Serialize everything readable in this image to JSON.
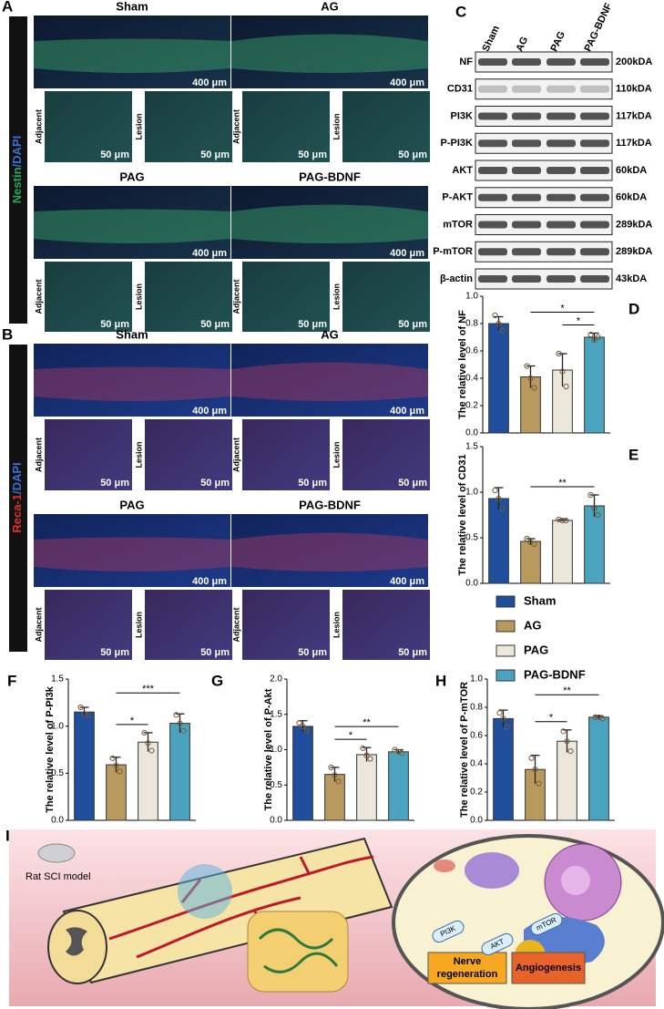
{
  "panel_a": {
    "letter": "A",
    "stain": [
      "Nestin",
      "/DAPI"
    ],
    "images": [
      {
        "title": "Sham",
        "scale": "400 μm",
        "insets": [
          {
            "label": "Adjacent",
            "scale": "50 μm"
          },
          {
            "label": "Lesion",
            "scale": "50 μm"
          }
        ]
      },
      {
        "title": "AG",
        "scale": "400 μm",
        "insets": [
          {
            "label": "Adjacent",
            "scale": "50 μm"
          },
          {
            "label": "Lesion",
            "scale": "50 μm"
          }
        ]
      },
      {
        "title": "PAG",
        "scale": "400 μm",
        "insets": [
          {
            "label": "Adjacent",
            "scale": "50 μm"
          },
          {
            "label": "Lesion",
            "scale": "50 μm"
          }
        ]
      },
      {
        "title": "PAG-BDNF",
        "scale": "400 μm",
        "insets": [
          {
            "label": "Adjacent",
            "scale": "50 μm"
          },
          {
            "label": "Lesion",
            "scale": "50 μm"
          }
        ]
      }
    ]
  },
  "panel_b": {
    "letter": "B",
    "stain": [
      "Reca-1",
      "/DAPI"
    ],
    "images": [
      {
        "title": "Sham",
        "scale": "400 μm",
        "insets": [
          {
            "label": "Adjacent",
            "scale": "50 μm"
          },
          {
            "label": "Lesion",
            "scale": "50 μm"
          }
        ]
      },
      {
        "title": "AG",
        "scale": "400 μm",
        "insets": [
          {
            "label": "Adjacent",
            "scale": "50 μm"
          },
          {
            "label": "Lesion",
            "scale": "50 μm"
          }
        ]
      },
      {
        "title": "PAG",
        "scale": "400 μm",
        "insets": [
          {
            "label": "Adjacent",
            "scale": "50 μm"
          },
          {
            "label": "Lesion",
            "scale": "50 μm"
          }
        ]
      },
      {
        "title": "PAG-BDNF",
        "scale": "400 μm",
        "insets": [
          {
            "label": "Adjacent",
            "scale": "50 μm"
          },
          {
            "label": "Lesion",
            "scale": "50 μm"
          }
        ]
      }
    ]
  },
  "panel_c": {
    "letter": "C",
    "lanes": [
      "Sham",
      "AG",
      "PAG",
      "PAG-BDNF"
    ],
    "rows": [
      {
        "name": "NF",
        "size": "200kDA"
      },
      {
        "name": "CD31",
        "size": "110kDA"
      },
      {
        "name": "PI3K",
        "size": "117kDA"
      },
      {
        "name": "P-PI3K",
        "size": "117kDA"
      },
      {
        "name": "AKT",
        "size": "60kDA"
      },
      {
        "name": "P-AKT",
        "size": "60kDA"
      },
      {
        "name": "mTOR",
        "size": "289kDA"
      },
      {
        "name": "P-mTOR",
        "size": "289kDA"
      },
      {
        "name": "β-actin",
        "size": "43kDA"
      }
    ]
  },
  "legend": {
    "names": [
      "Sham",
      "AG",
      "PAG",
      "PAG-BDNF"
    ],
    "colors": [
      "#1f4e9c",
      "#b89a5f",
      "#ebe7da",
      "#4aa3bf"
    ]
  },
  "chart_data": [
    {
      "type": "bar",
      "panel": "D",
      "ylabel": "The relative level of NF",
      "ylim": [
        0,
        1
      ],
      "yticks": [
        {
          "value": 0,
          "label": "0.0"
        },
        0.2,
        0.4,
        0.6,
        0.8,
        {
          "value": 1,
          "label": "1.0"
        }
      ],
      "values": [
        0.8,
        0.41,
        0.46,
        0.7
      ],
      "errors": [
        0.05,
        0.08,
        0.12,
        0.03
      ],
      "points": [
        [
          0.86,
          0.8,
          0.75
        ],
        [
          0.49,
          0.4,
          0.33
        ],
        [
          0.58,
          0.45,
          0.34
        ],
        [
          0.72,
          0.68,
          0.7
        ]
      ],
      "annotations": [
        {
          "from": 1,
          "to": 3,
          "text": "*"
        },
        {
          "from": 2,
          "to": 3,
          "text": "*"
        }
      ]
    },
    {
      "type": "bar",
      "panel": "E",
      "ylabel": "The relative level of CD31",
      "ylim": [
        0,
        1.5
      ],
      "yticks": [
        {
          "value": 0,
          "label": "0.0"
        },
        0.5,
        {
          "value": 1,
          "label": "1.0"
        },
        1.5
      ],
      "values": [
        0.93,
        0.46,
        0.69,
        0.85
      ],
      "errors": [
        0.12,
        0.03,
        0.01,
        0.12
      ],
      "points": [
        [
          1.02,
          0.93,
          0.82
        ],
        [
          0.49,
          0.45,
          0.43
        ],
        [
          0.7,
          0.69,
          0.69
        ],
        [
          0.97,
          0.82,
          0.75
        ]
      ],
      "annotations": [
        {
          "from": 1,
          "to": 3,
          "text": "**"
        }
      ]
    },
    {
      "type": "bar",
      "panel": "F",
      "ylabel": "The relative level of P-PI3k",
      "ylim": [
        0,
        1.5
      ],
      "yticks": [
        {
          "value": 0,
          "label": "0.0"
        },
        0.5,
        {
          "value": 1,
          "label": "1.0"
        },
        1.5
      ],
      "values": [
        1.15,
        0.59,
        0.83,
        1.03
      ],
      "errors": [
        0.05,
        0.08,
        0.1,
        0.1
      ],
      "points": [
        [
          1.2,
          1.13,
          1.12
        ],
        [
          0.66,
          0.58,
          0.52
        ],
        [
          0.93,
          0.82,
          0.74
        ],
        [
          1.12,
          1.03,
          0.95
        ]
      ],
      "annotations": [
        {
          "from": 1,
          "to": 2,
          "text": "*"
        },
        {
          "from": 1,
          "to": 3,
          "text": "***"
        }
      ]
    },
    {
      "type": "bar",
      "panel": "G",
      "ylabel": "The relative level of P-Akt",
      "ylim": [
        0,
        2
      ],
      "yticks": [
        {
          "value": 0,
          "label": "0.0"
        },
        0.5,
        {
          "value": 1,
          "label": "1.0"
        },
        1.5,
        {
          "value": 2,
          "label": "2.0"
        }
      ],
      "values": [
        1.33,
        0.65,
        0.93,
        0.97
      ],
      "errors": [
        0.08,
        0.1,
        0.1,
        0.03
      ],
      "points": [
        [
          1.38,
          1.33,
          1.27
        ],
        [
          0.75,
          0.64,
          0.55
        ],
        [
          1.02,
          0.92,
          0.87
        ],
        [
          1.0,
          0.97,
          0.95
        ]
      ],
      "annotations": [
        {
          "from": 1,
          "to": 2,
          "text": "*"
        },
        {
          "from": 1,
          "to": 3,
          "text": "**"
        }
      ]
    },
    {
      "type": "bar",
      "panel": "H",
      "ylabel": "The relative level of P-mTOR",
      "ylim": [
        0,
        1
      ],
      "yticks": [
        {
          "value": 0,
          "label": "0.0"
        },
        0.2,
        0.4,
        0.6,
        0.8,
        {
          "value": 1,
          "label": "1.0"
        }
      ],
      "values": [
        0.72,
        0.36,
        0.56,
        0.73
      ],
      "errors": [
        0.06,
        0.1,
        0.08,
        0.01
      ],
      "points": [
        [
          0.76,
          0.72,
          0.66
        ],
        [
          0.44,
          0.36,
          0.26
        ],
        [
          0.63,
          0.56,
          0.49
        ],
        [
          0.73,
          0.73,
          0.72
        ]
      ],
      "annotations": [
        {
          "from": 1,
          "to": 2,
          "text": "*"
        },
        {
          "from": 1,
          "to": 3,
          "text": "**"
        }
      ]
    }
  ],
  "panel_i": {
    "letter": "I",
    "model": "Rat SCI model",
    "pathway": [
      "PI3K",
      "AKT",
      "mTOR"
    ],
    "nerve": [
      "Nerve",
      "regeneration"
    ],
    "angio": "Angiogenesis"
  }
}
